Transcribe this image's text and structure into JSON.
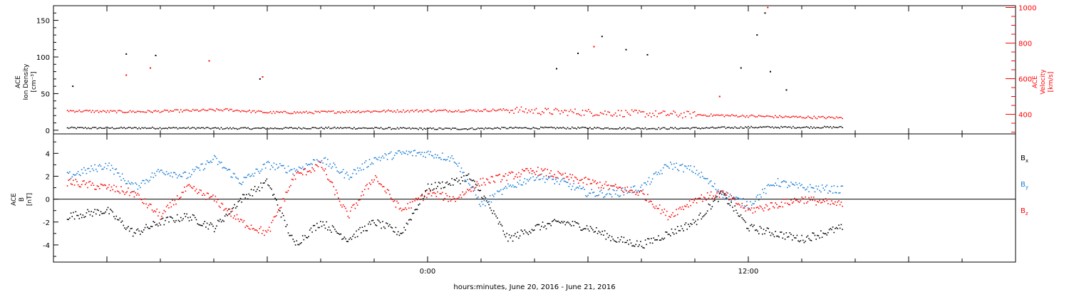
{
  "chart_data": [
    {
      "type": "scatter",
      "title": "",
      "ylabel": [
        "ACE",
        "Ion Density",
        "[cm⁻³]"
      ],
      "ylim": [
        -5,
        170
      ],
      "y_ticks": [
        0,
        50,
        100,
        150
      ],
      "y2label": [
        "ACE",
        "Velocity",
        "[km/s]"
      ],
      "y2lim": [
        290,
        1010
      ],
      "y2_ticks": [
        400,
        600,
        800,
        1000
      ],
      "series": [
        {
          "name": "",
          "axis": "left",
          "color": "#000000",
          "x": [
            -13.5,
            -12,
            -10.5,
            -9,
            -7.5,
            -6,
            -4.5,
            -3,
            -1.5,
            0,
            1.5,
            3,
            4.5,
            6,
            7.5,
            9,
            10.5,
            12,
            13.5,
            15.5
          ],
          "y": [
            3,
            3,
            3,
            3,
            2.5,
            2.5,
            3,
            3,
            2.5,
            2,
            2,
            3,
            3,
            3,
            2.5,
            2.5,
            3,
            4,
            4,
            4
          ],
          "spikes": [
            [
              -13.3,
              60
            ],
            [
              -11.3,
              104
            ],
            [
              -10.2,
              102
            ],
            [
              -6.3,
              70
            ],
            [
              4.8,
              84
            ],
            [
              5.6,
              105
            ],
            [
              6.5,
              128
            ],
            [
              7.4,
              110
            ],
            [
              8.2,
              103
            ],
            [
              11.7,
              85
            ],
            [
              12.3,
              130
            ],
            [
              12.6,
              160
            ],
            [
              12.8,
              80
            ],
            [
              13.4,
              55
            ]
          ]
        },
        {
          "name": "",
          "axis": "right",
          "color": "#ff0000",
          "x": [
            -13.5,
            -12,
            -10.5,
            -9,
            -7.5,
            -6,
            -4.5,
            -3,
            -1.5,
            0,
            1.5,
            3,
            4.5,
            6,
            7.5,
            9,
            10.5,
            12,
            13.5,
            15.5
          ],
          "y": [
            420,
            415,
            415,
            420,
            425,
            410,
            410,
            415,
            418,
            420,
            420,
            425,
            415,
            410,
            405,
            400,
            395,
            390,
            385,
            380
          ],
          "spikes": [
            [
              -11.3,
              620
            ],
            [
              -10.4,
              660
            ],
            [
              -8.2,
              700
            ],
            [
              -6.2,
              610
            ],
            [
              6.2,
              780
            ],
            [
              10.9,
              500
            ],
            [
              12.7,
              1000
            ]
          ]
        }
      ]
    },
    {
      "type": "scatter",
      "title": "",
      "ylabel": [
        "ACE",
        "B",
        "[nT]"
      ],
      "ylim": [
        -5.5,
        5.7
      ],
      "y_ticks": [
        -4,
        -2,
        0,
        2,
        4
      ],
      "zero_line": true,
      "xlabel": "hours:minutes, June 20, 2016 - June 21, 2016",
      "xlim": [
        -14,
        22
      ],
      "x_tick_labels": [
        {
          "hours": 0,
          "label": "0:00"
        },
        {
          "hours": 12,
          "label": "12:00"
        }
      ],
      "series": [
        {
          "name": "B",
          "subscript": "x",
          "color": "#000000",
          "x": [
            -13.5,
            -12,
            -11,
            -10,
            -9,
            -8,
            -7,
            -6,
            -5,
            -4,
            -3,
            -2,
            -1,
            0,
            1,
            1.5,
            2,
            3,
            4,
            5,
            6,
            7,
            8,
            9,
            10,
            11,
            12,
            13,
            14,
            15.5
          ],
          "y": [
            -1.5,
            -1.0,
            -3.0,
            -2.0,
            -1.5,
            -2.5,
            0.0,
            1.5,
            -4.0,
            -2.0,
            -3.5,
            -2.0,
            -3.0,
            1.0,
            1.5,
            2.0,
            0.5,
            -3.5,
            -2.5,
            -2.0,
            -2.5,
            -3.5,
            -4.0,
            -3.0,
            -2.0,
            0.5,
            -2.5,
            -3.0,
            -3.5,
            -2.5
          ]
        },
        {
          "name": "B",
          "subscript": "y",
          "color": "#1e7fd6",
          "x": [
            -13.5,
            -12,
            -11,
            -10,
            -9,
            -8,
            -7,
            -6,
            -5,
            -4,
            -3,
            -2,
            -1,
            0,
            1,
            2,
            3,
            4,
            5,
            6,
            7,
            8,
            9,
            10,
            11,
            12,
            13,
            14,
            15.5
          ],
          "y": [
            2.0,
            3.0,
            1.0,
            2.5,
            2.0,
            3.5,
            1.5,
            3.0,
            2.5,
            3.5,
            2.0,
            3.5,
            4.0,
            4.0,
            3.5,
            -0.5,
            1.0,
            2.0,
            1.5,
            0.5,
            0.5,
            1.0,
            3.0,
            2.5,
            0.5,
            -0.5,
            1.5,
            1.0,
            0.8
          ]
        },
        {
          "name": "B",
          "subscript": "z",
          "color": "#ff0000",
          "x": [
            -13.5,
            -12,
            -11,
            -10,
            -9,
            -8,
            -7,
            -6,
            -5,
            -4,
            -3,
            -2,
            -1,
            0,
            1,
            2,
            3,
            4,
            5,
            6,
            7,
            8,
            9,
            10,
            11,
            12,
            13,
            14,
            15.5
          ],
          "y": [
            1.5,
            1.0,
            0.5,
            -1.5,
            1.0,
            0.0,
            -2.0,
            -3.0,
            2.0,
            3.0,
            -1.5,
            2.0,
            -1.0,
            0.5,
            0.0,
            1.5,
            2.0,
            2.5,
            2.0,
            1.5,
            1.0,
            0.5,
            -1.5,
            0.0,
            0.5,
            -1.0,
            -0.5,
            0.0,
            -0.5
          ]
        }
      ]
    }
  ]
}
